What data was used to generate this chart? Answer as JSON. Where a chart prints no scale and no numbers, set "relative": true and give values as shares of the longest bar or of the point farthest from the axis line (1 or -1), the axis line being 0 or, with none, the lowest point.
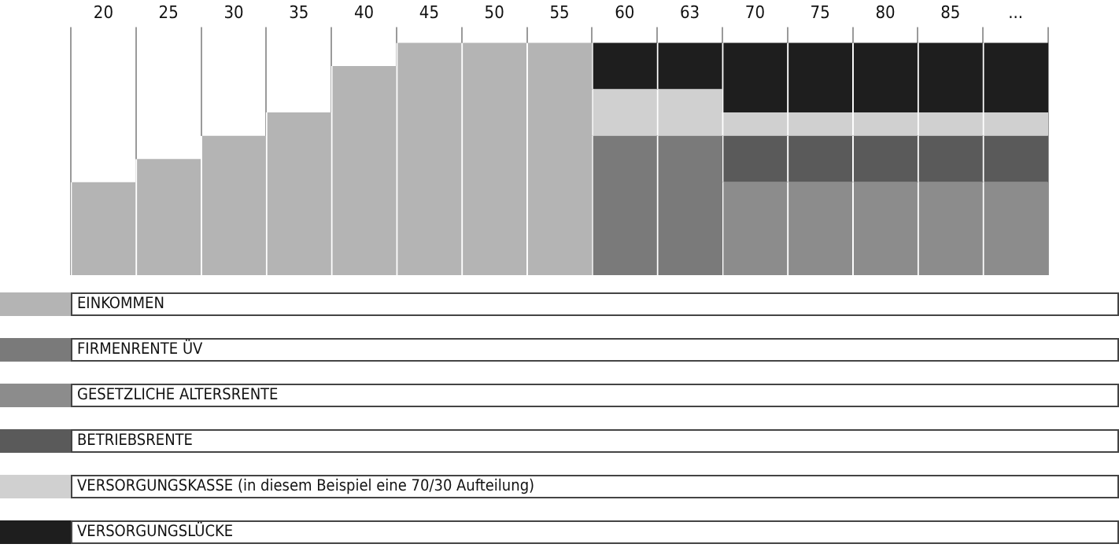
{
  "chart_data": {
    "type": "bar",
    "stacked": true,
    "relative": true,
    "grid": "x",
    "legend": "bottom",
    "categories": [
      "20",
      "25",
      "30",
      "35",
      "40",
      "45",
      "50",
      "55",
      "60",
      "63",
      "70",
      "75",
      "80",
      "85",
      "..."
    ],
    "series": [
      {
        "name": "EINKOMMEN",
        "color": "#b4b4b4",
        "values": [
          0.4,
          0.5,
          0.6,
          0.7,
          0.9,
          1,
          1,
          1,
          null,
          null,
          null,
          null,
          null,
          null,
          null
        ]
      },
      {
        "name": "FIRMENRENTE ÜV",
        "color": "#7a7a7a",
        "values": [
          null,
          null,
          null,
          null,
          null,
          null,
          null,
          null,
          0.6,
          0.6,
          null,
          null,
          null,
          null,
          null
        ]
      },
      {
        "name": "GESETZLICHE ALTERSRENTE",
        "color": "#8c8c8c",
        "values": [
          null,
          null,
          null,
          null,
          null,
          null,
          null,
          null,
          null,
          null,
          0.4,
          0.4,
          0.4,
          0.4,
          0.4
        ]
      },
      {
        "name": "BETRIEBSRENTE",
        "color": "#5a5a5a",
        "values": [
          null,
          null,
          null,
          null,
          null,
          null,
          null,
          null,
          null,
          null,
          0.2,
          0.2,
          0.2,
          0.2,
          0.2
        ]
      },
      {
        "name": "VERSORGUNGSKASSE (in diesem Beispiel eine 70/30 Aufteilung)",
        "color": "#d0d0d0",
        "values": [
          null,
          null,
          null,
          null,
          null,
          null,
          null,
          null,
          0.2,
          0.2,
          0.1,
          0.1,
          0.1,
          0.1,
          0.1
        ]
      },
      {
        "name": "VERSORGUNGSLÜCKE",
        "color": "#1e1e1e",
        "values": [
          null,
          null,
          null,
          null,
          null,
          null,
          null,
          null,
          0.2,
          0.2,
          0.3,
          0.3,
          0.3,
          0.3,
          0.3
        ]
      }
    ]
  }
}
